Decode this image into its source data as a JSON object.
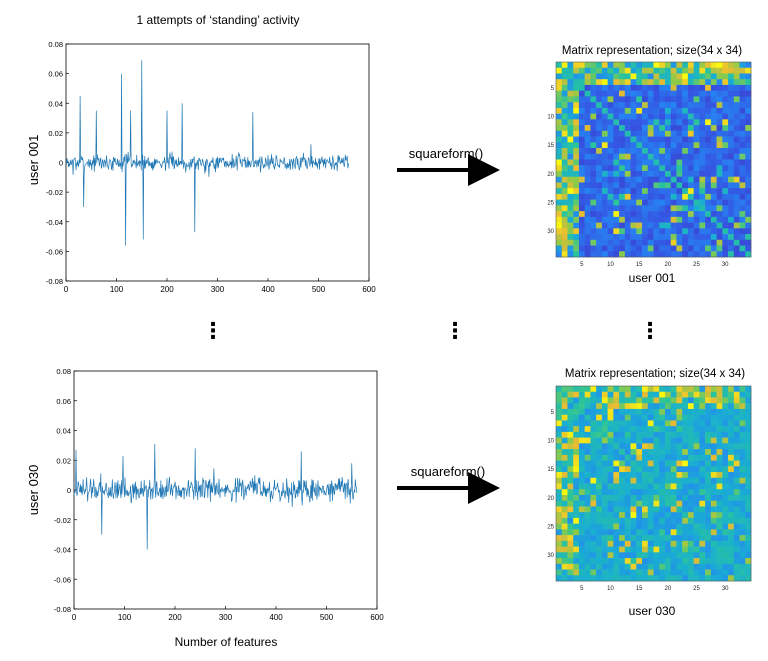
{
  "figure": {
    "top_title": "1 attempts of ‘standing’ activity",
    "arrow_label": "squareform()",
    "dots": "⋮",
    "x_axis_label": "Number of features"
  },
  "colors": {
    "signal": "#1f77b4",
    "matrix_low": "#3e26a8",
    "matrix_mid": "#2ab7b0",
    "matrix_high": "#f9fb0e"
  },
  "chart_data": [
    {
      "type": "line",
      "name": "user 001 signal",
      "ylabel": "user 001",
      "xlabel": "",
      "xlim": [
        0,
        600
      ],
      "ylim": [
        -0.08,
        0.08
      ],
      "xticks": [
        0,
        100,
        200,
        300,
        400,
        500,
        600
      ],
      "yticks": [
        -0.08,
        -0.06,
        -0.04,
        -0.02,
        0,
        0.02,
        0.04,
        0.06,
        0.08
      ],
      "n_points": 561,
      "noise_amplitude": 0.008,
      "spikes": [
        {
          "x": 28,
          "y": 0.045
        },
        {
          "x": 35,
          "y": -0.03
        },
        {
          "x": 60,
          "y": 0.035
        },
        {
          "x": 110,
          "y": 0.06
        },
        {
          "x": 118,
          "y": -0.056
        },
        {
          "x": 128,
          "y": 0.035
        },
        {
          "x": 150,
          "y": 0.069
        },
        {
          "x": 153,
          "y": -0.052
        },
        {
          "x": 200,
          "y": 0.035
        },
        {
          "x": 230,
          "y": 0.04
        },
        {
          "x": 255,
          "y": -0.047
        },
        {
          "x": 370,
          "y": 0.034
        }
      ]
    },
    {
      "type": "line",
      "name": "user 030 signal",
      "ylabel": "user 030",
      "xlabel": "Number of features",
      "xlim": [
        0,
        600
      ],
      "ylim": [
        -0.08,
        0.08
      ],
      "xticks": [
        0,
        100,
        200,
        300,
        400,
        500,
        600
      ],
      "yticks": [
        -0.08,
        -0.06,
        -0.04,
        -0.02,
        0,
        0.02,
        0.04,
        0.06,
        0.08
      ],
      "n_points": 561,
      "noise_amplitude": 0.012,
      "spikes": [
        {
          "x": 4,
          "y": 0.027
        },
        {
          "x": 55,
          "y": -0.03
        },
        {
          "x": 145,
          "y": -0.04
        },
        {
          "x": 160,
          "y": 0.031
        },
        {
          "x": 240,
          "y": 0.028
        },
        {
          "x": 450,
          "y": 0.026
        },
        {
          "x": 550,
          "y": 0.018
        }
      ]
    },
    {
      "type": "heatmap",
      "name": "user 001 matrix",
      "title": "Matrix representation; size(34 x 34)",
      "xlabel": "user 001",
      "size": 34,
      "xticks": [
        5,
        10,
        15,
        20,
        25,
        30
      ],
      "yticks": [
        5,
        10,
        15,
        20,
        25,
        30
      ],
      "background_level": 0.12,
      "hot_fraction": 0.18
    },
    {
      "type": "heatmap",
      "name": "user 030 matrix",
      "title": "Matrix representation; size(34 x 34)",
      "xlabel": "user 030",
      "size": 34,
      "xticks": [
        5,
        10,
        15,
        20,
        25,
        30
      ],
      "yticks": [
        5,
        10,
        15,
        20,
        25,
        30
      ],
      "background_level": 0.35,
      "hot_fraction": 0.28
    }
  ]
}
